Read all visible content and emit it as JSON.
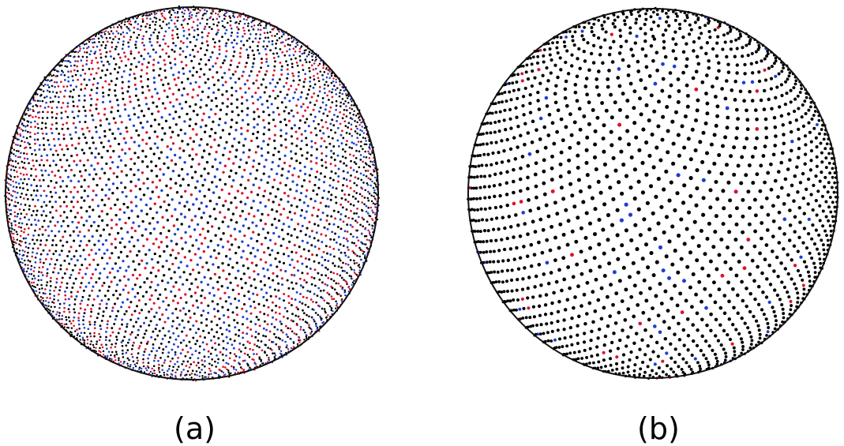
{
  "panels": [
    {
      "label": "(a)",
      "colors": [
        "#000000",
        "#1c3fd1",
        "#d8142e"
      ],
      "mix": [
        0.5,
        0.26,
        0.24
      ]
    },
    {
      "label": "(b)",
      "colors": [
        "#000000",
        "#1c3fd1",
        "#d8142e"
      ],
      "mix": [
        0.95,
        0.03,
        0.02
      ]
    }
  ]
}
